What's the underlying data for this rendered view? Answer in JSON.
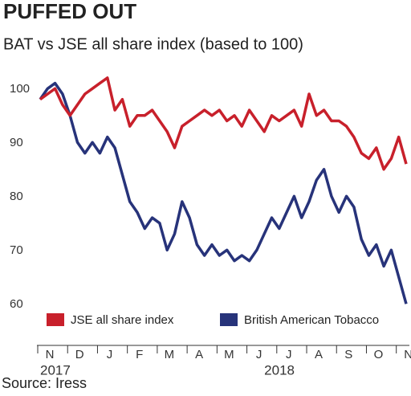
{
  "chart_data": {
    "type": "line",
    "title": "PUFFED OUT",
    "subtitle": "BAT vs JSE all share index (based to 100)",
    "source": "Source: Iress",
    "categories": [
      "N",
      null,
      null,
      null,
      "D",
      null,
      null,
      null,
      "J",
      null,
      null,
      null,
      "F",
      null,
      null,
      null,
      "M",
      null,
      null,
      null,
      "A",
      null,
      null,
      null,
      "M",
      null,
      null,
      null,
      "J",
      null,
      null,
      null,
      "J",
      null,
      null,
      null,
      "A",
      null,
      null,
      null,
      "S",
      null,
      null,
      null,
      "O",
      null,
      null,
      null,
      "N",
      null
    ],
    "year_categories": [
      "2017",
      null,
      null,
      null,
      null,
      null,
      null,
      null,
      null,
      null,
      null,
      null,
      null,
      null,
      null,
      null,
      null,
      null,
      null,
      null,
      null,
      null,
      null,
      null,
      null,
      null,
      null,
      null,
      null,
      null,
      "2018",
      null,
      null,
      null,
      null,
      null,
      null,
      null,
      null,
      null,
      null,
      null,
      null,
      null,
      null,
      null,
      null,
      null,
      null,
      null
    ],
    "series": [
      {
        "name": "JSE all share index",
        "color": "#c8202b",
        "values": [
          99,
          100,
          101,
          98,
          96,
          98,
          100,
          101,
          102,
          103,
          97,
          99,
          94,
          96,
          96,
          97,
          95,
          93,
          90,
          94,
          95,
          96,
          97,
          96,
          97,
          95,
          96,
          94,
          97,
          95,
          93,
          96,
          95,
          96,
          97,
          94,
          100,
          96,
          97,
          95,
          95,
          94,
          92,
          89,
          88,
          90,
          86,
          88,
          92,
          87
        ]
      },
      {
        "name": "British American Tobacco",
        "color": "#27337a",
        "values": [
          99,
          101,
          102,
          100,
          96,
          91,
          89,
          91,
          89,
          92,
          90,
          85,
          80,
          78,
          75,
          77,
          76,
          71,
          74,
          80,
          77,
          72,
          70,
          72,
          70,
          71,
          69,
          70,
          69,
          71,
          74,
          77,
          75,
          78,
          81,
          77,
          80,
          84,
          86,
          81,
          78,
          81,
          79,
          73,
          70,
          72,
          68,
          71,
          66,
          61
        ]
      }
    ],
    "ylim": [
      59,
      105
    ],
    "yticks": [
      60,
      70,
      80,
      90,
      100
    ],
    "grid": false
  }
}
